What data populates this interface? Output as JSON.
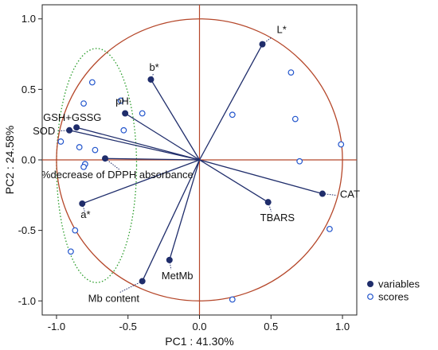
{
  "chart_data": {
    "type": "scatter",
    "xlabel": "PC1 : 41.30%",
    "ylabel": "PC2 : 24.58%",
    "xlim": [
      -1.1,
      1.1
    ],
    "ylim": [
      -1.1,
      1.1
    ],
    "xticks": [
      {
        "value": -1.0,
        "label": "-1.0"
      },
      {
        "value": -0.5,
        "label": "-0.5"
      },
      {
        "value": 0.0,
        "label": "0.0"
      },
      {
        "value": 0.5,
        "label": "0.5"
      },
      {
        "value": 1.0,
        "label": "1.0"
      }
    ],
    "yticks": [
      {
        "value": 1.0,
        "label": "1.0"
      },
      {
        "value": 0.5,
        "label": "0.5"
      },
      {
        "value": 0.0,
        "label": "0.0"
      },
      {
        "value": -0.5,
        "label": "-0.5"
      },
      {
        "value": -1.0,
        "label": "-1.0"
      }
    ],
    "series": [
      {
        "name": "variables",
        "marker": "filled-circle",
        "color": "#1f2d6b",
        "points": [
          {
            "label": "L*",
            "x": 0.44,
            "y": 0.82
          },
          {
            "label": "b*",
            "x": -0.34,
            "y": 0.57
          },
          {
            "label": "pH",
            "x": -0.52,
            "y": 0.33
          },
          {
            "label": "GSH+GSSG",
            "x": -0.86,
            "y": 0.23
          },
          {
            "label": "SOD",
            "x": -0.91,
            "y": 0.21
          },
          {
            "label": "%decrease of DPPH absorbance",
            "x": -0.66,
            "y": 0.01
          },
          {
            "label": "a*",
            "x": -0.82,
            "y": -0.31
          },
          {
            "label": "TBARS",
            "x": 0.48,
            "y": -0.3
          },
          {
            "label": "CAT",
            "x": 0.86,
            "y": -0.24
          },
          {
            "label": "MetMb",
            "x": -0.21,
            "y": -0.71
          },
          {
            "label": "Mb content",
            "x": -0.4,
            "y": -0.86
          }
        ]
      },
      {
        "name": "scores",
        "marker": "open-circle",
        "color": "#2255cc",
        "points": [
          {
            "x": -0.75,
            "y": 0.55
          },
          {
            "x": -0.81,
            "y": 0.4
          },
          {
            "x": -0.55,
            "y": 0.42
          },
          {
            "x": -0.4,
            "y": 0.33
          },
          {
            "x": -0.53,
            "y": 0.21
          },
          {
            "x": -0.97,
            "y": 0.13
          },
          {
            "x": -0.84,
            "y": 0.09
          },
          {
            "x": -0.73,
            "y": 0.07
          },
          {
            "x": -0.8,
            "y": -0.03
          },
          {
            "x": -0.81,
            "y": -0.05
          },
          {
            "x": -0.87,
            "y": -0.5
          },
          {
            "x": -0.9,
            "y": -0.65
          },
          {
            "x": 0.64,
            "y": 0.62
          },
          {
            "x": 0.23,
            "y": 0.32
          },
          {
            "x": 0.67,
            "y": 0.29
          },
          {
            "x": 0.7,
            "y": -0.01
          },
          {
            "x": 0.99,
            "y": 0.11
          },
          {
            "x": 0.91,
            "y": -0.49
          },
          {
            "x": 0.23,
            "y": -0.99
          }
        ]
      }
    ],
    "unit_circle": {
      "radius": 1.0,
      "color": "#b5472a"
    },
    "highlight_ellipse": {
      "cx": -0.72,
      "cy": -0.04,
      "rx": 0.28,
      "ry": 0.83,
      "color": "#2a9d2a",
      "style": "dotted"
    },
    "legend": {
      "placement": "bottom-right",
      "entries": [
        {
          "label": "variables",
          "marker": "filled-circle"
        },
        {
          "label": "scores",
          "marker": "open-circle"
        }
      ]
    }
  }
}
